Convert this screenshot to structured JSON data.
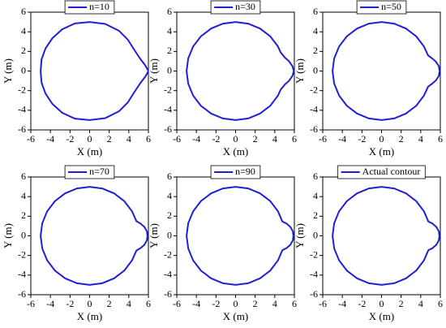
{
  "chart_data": [
    {
      "type": "line",
      "xlabel": "X (m)",
      "ylabel": "Y (m)",
      "xlim": [
        -6,
        6
      ],
      "ylim": [
        -6,
        6
      ],
      "xticks": [
        -6,
        -4,
        -2,
        0,
        2,
        4,
        6
      ],
      "yticks": [
        -6,
        -4,
        -2,
        0,
        2,
        4,
        6
      ],
      "series": [
        {
          "name": "n=10",
          "color": "#1f1fd6",
          "x": [
            6,
            5.7,
            5.2,
            4.6,
            3.9,
            3,
            1.6,
            0,
            -1.5,
            -2.8,
            -3.8,
            -4.5,
            -4.9,
            -5,
            -4.9,
            -4.5,
            -3.8,
            -2.8,
            -1.5,
            0,
            1.6,
            3,
            3.9,
            4.6,
            5.2,
            5.7,
            6
          ],
          "y": [
            0,
            0.55,
            1.2,
            2.1,
            3.2,
            4.1,
            4.8,
            5,
            4.85,
            4.25,
            3.35,
            2.3,
            1.2,
            0,
            -1.2,
            -2.3,
            -3.35,
            -4.25,
            -4.85,
            -5,
            -4.8,
            -4.1,
            -3.2,
            -2.1,
            -1.2,
            -0.55,
            0
          ]
        }
      ]
    },
    {
      "type": "line",
      "xlabel": "X (m)",
      "ylabel": "Y (m)",
      "xlim": [
        -6,
        6
      ],
      "ylim": [
        -6,
        6
      ],
      "xticks": [
        -6,
        -4,
        -2,
        0,
        2,
        4,
        6
      ],
      "yticks": [
        -6,
        -4,
        -2,
        0,
        2,
        4,
        6
      ],
      "series": [
        {
          "name": "n=30",
          "color": "#1f1fd6",
          "x": [
            5.95,
            5.8,
            5.45,
            5.05,
            4.6,
            4.33,
            3.54,
            2.5,
            1.29,
            0,
            -1.29,
            -2.5,
            -3.54,
            -4.33,
            -4.83,
            -5,
            -4.83,
            -4.33,
            -3.54,
            -2.5,
            -1.29,
            0,
            1.29,
            2.5,
            3.54,
            4.33,
            4.6,
            5.05,
            5.45,
            5.8,
            5.95
          ],
          "y": [
            0,
            0.5,
            1,
            1.35,
            1.9,
            2.5,
            3.54,
            4.33,
            4.83,
            5,
            4.83,
            4.33,
            3.54,
            2.5,
            1.29,
            0,
            -1.29,
            -2.5,
            -3.54,
            -4.33,
            -4.83,
            -5,
            -4.83,
            -4.33,
            -3.54,
            -2.5,
            -1.9,
            -1.35,
            -1,
            -0.5,
            0
          ]
        }
      ]
    },
    {
      "type": "line",
      "xlabel": "X (m)",
      "ylabel": "Y (m)",
      "xlim": [
        -6,
        6
      ],
      "ylim": [
        -6,
        6
      ],
      "xticks": [
        -6,
        -4,
        -2,
        0,
        2,
        4,
        6
      ],
      "yticks": [
        -6,
        -4,
        -2,
        0,
        2,
        4,
        6
      ],
      "series": [
        {
          "name": "n=50",
          "color": "#1f1fd6",
          "x": [
            5.92,
            5.85,
            5.55,
            5.15,
            4.75,
            4.33,
            3.54,
            2.5,
            1.29,
            0,
            -1.29,
            -2.5,
            -3.54,
            -4.33,
            -4.83,
            -5,
            -4.83,
            -4.33,
            -3.54,
            -2.5,
            -1.29,
            0,
            1.29,
            2.5,
            3.54,
            4.33,
            4.75,
            5.15,
            5.55,
            5.85,
            5.92
          ],
          "y": [
            0,
            0.5,
            0.95,
            1.3,
            1.6,
            2.5,
            3.54,
            4.33,
            4.83,
            5,
            4.83,
            4.33,
            3.54,
            2.5,
            1.29,
            0,
            -1.29,
            -2.5,
            -3.54,
            -4.33,
            -4.83,
            -5,
            -4.83,
            -4.33,
            -3.54,
            -2.5,
            -1.6,
            -1.3,
            -0.95,
            -0.5,
            0
          ]
        }
      ]
    },
    {
      "type": "line",
      "xlabel": "X (m)",
      "ylabel": "Y (m)",
      "xlim": [
        -6,
        6
      ],
      "ylim": [
        -6,
        6
      ],
      "xticks": [
        -6,
        -4,
        -2,
        0,
        2,
        4,
        6
      ],
      "yticks": [
        -6,
        -4,
        -2,
        0,
        2,
        4,
        6
      ],
      "series": [
        {
          "name": "n=70",
          "color": "#1f1fd6",
          "x": [
            5.9,
            5.85,
            5.6,
            5.2,
            4.78,
            4.33,
            3.54,
            2.5,
            1.29,
            0,
            -1.29,
            -2.5,
            -3.54,
            -4.33,
            -4.83,
            -5,
            -4.83,
            -4.33,
            -3.54,
            -2.5,
            -1.29,
            0,
            1.29,
            2.5,
            3.54,
            4.33,
            4.78,
            5.2,
            5.6,
            5.85,
            5.9
          ],
          "y": [
            0,
            0.45,
            0.9,
            1.25,
            1.5,
            2.5,
            3.54,
            4.33,
            4.83,
            5,
            4.83,
            4.33,
            3.54,
            2.5,
            1.29,
            0,
            -1.29,
            -2.5,
            -3.54,
            -4.33,
            -4.83,
            -5,
            -4.83,
            -4.33,
            -3.54,
            -2.5,
            -1.5,
            -1.25,
            -0.9,
            -0.45,
            0
          ]
        }
      ]
    },
    {
      "type": "line",
      "xlabel": "X (m)",
      "ylabel": "Y (m)",
      "xlim": [
        -6,
        6
      ],
      "ylim": [
        -6,
        6
      ],
      "xticks": [
        -6,
        -4,
        -2,
        0,
        2,
        4,
        6
      ],
      "yticks": [
        -6,
        -4,
        -2,
        0,
        2,
        4,
        6
      ],
      "series": [
        {
          "name": "n=90",
          "color": "#1f1fd6",
          "x": [
            5.9,
            5.85,
            5.6,
            5.2,
            4.78,
            4.33,
            3.54,
            2.5,
            1.29,
            0,
            -1.29,
            -2.5,
            -3.54,
            -4.33,
            -4.83,
            -5,
            -4.83,
            -4.33,
            -3.54,
            -2.5,
            -1.29,
            0,
            1.29,
            2.5,
            3.54,
            4.33,
            4.78,
            5.2,
            5.6,
            5.85,
            5.9
          ],
          "y": [
            0,
            0.45,
            0.9,
            1.25,
            1.46,
            2.5,
            3.54,
            4.33,
            4.83,
            5,
            4.83,
            4.33,
            3.54,
            2.5,
            1.29,
            0,
            -1.29,
            -2.5,
            -3.54,
            -4.33,
            -4.83,
            -5,
            -4.83,
            -4.33,
            -3.54,
            -2.5,
            -1.46,
            -1.25,
            -0.9,
            -0.45,
            0
          ]
        }
      ]
    },
    {
      "type": "line",
      "xlabel": "X (m)",
      "ylabel": "Y (m)",
      "xlim": [
        -6,
        6
      ],
      "ylim": [
        -6,
        6
      ],
      "xticks": [
        -6,
        -4,
        -2,
        0,
        2,
        4,
        6
      ],
      "yticks": [
        -6,
        -4,
        -2,
        0,
        2,
        4,
        6
      ],
      "series": [
        {
          "name": "Actual contour",
          "color": "#1f1fd6",
          "x": [
            5.9,
            5.85,
            5.6,
            5.2,
            4.78,
            4.33,
            3.54,
            2.5,
            1.29,
            0,
            -1.29,
            -2.5,
            -3.54,
            -4.33,
            -4.83,
            -5,
            -4.83,
            -4.33,
            -3.54,
            -2.5,
            -1.29,
            0,
            1.29,
            2.5,
            3.54,
            4.33,
            4.78,
            5.2,
            5.6,
            5.85,
            5.9
          ],
          "y": [
            0,
            0.45,
            0.9,
            1.25,
            1.46,
            2.5,
            3.54,
            4.33,
            4.83,
            5,
            4.83,
            4.33,
            3.54,
            2.5,
            1.29,
            0,
            -1.29,
            -2.5,
            -3.54,
            -4.33,
            -4.83,
            -5,
            -4.83,
            -4.33,
            -3.54,
            -2.5,
            -1.46,
            -1.25,
            -0.9,
            -0.45,
            0
          ]
        }
      ]
    }
  ]
}
